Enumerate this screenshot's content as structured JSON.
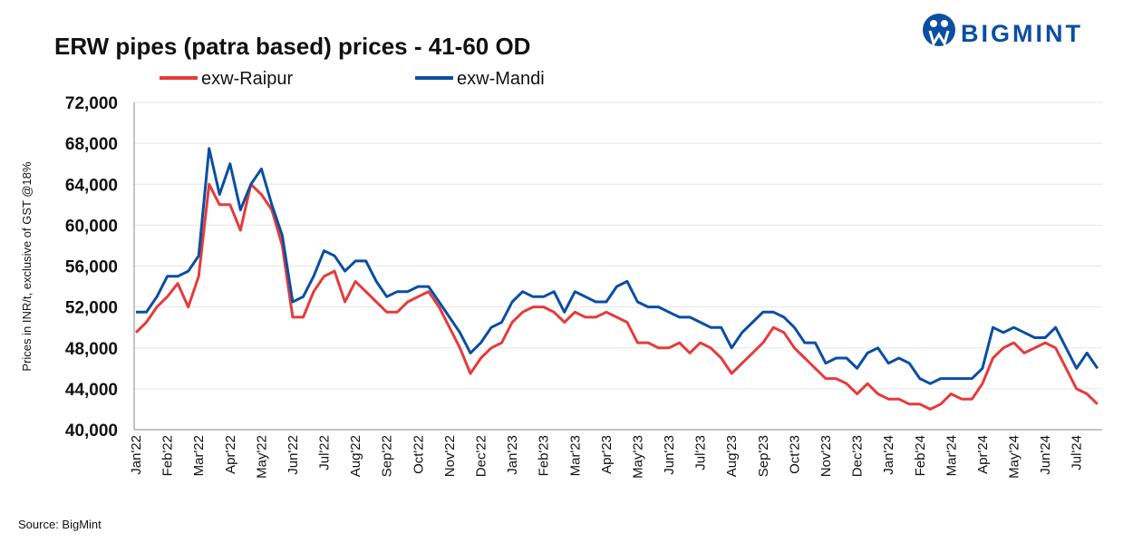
{
  "chart_data": {
    "type": "line",
    "title": "ERW pipes (patra based) prices - 41-60 OD",
    "logo": "BIGMINT",
    "y_label": "Prices in INR/t, exclusive of GST @18%",
    "source": "Source: BigMint",
    "categories": [
      "Jan'22",
      null,
      null,
      "Feb'22",
      null,
      null,
      "Mar'22",
      null,
      null,
      "Apr'22",
      null,
      null,
      "May'22",
      null,
      null,
      "Jun'22",
      null,
      null,
      "Jul'22",
      null,
      null,
      "Aug'22",
      null,
      null,
      "Sep'22",
      null,
      null,
      "Oct'22",
      null,
      null,
      "Nov'22",
      null,
      null,
      "Dec'22",
      null,
      null,
      "Jan'23",
      null,
      null,
      "Feb'23",
      null,
      null,
      "Mar'23",
      null,
      null,
      "Apr'23",
      null,
      null,
      "May'23",
      null,
      null,
      "Jun'23",
      null,
      null,
      "Jul'23",
      null,
      null,
      "Aug'23",
      null,
      null,
      "Sep'23",
      null,
      null,
      "Oct'23",
      null,
      null,
      "Nov'23",
      null,
      null,
      "Dec'23",
      null,
      null,
      "Jan'24",
      null,
      null,
      "Feb'24",
      null,
      null,
      "Mar'24",
      null,
      null,
      "Apr'24",
      null,
      null,
      "May'24",
      null,
      null,
      "Jun'24",
      null,
      null,
      "Jul'24",
      null,
      null
    ],
    "series": [
      {
        "name": "exw-Raipur",
        "color": "#e63b3b",
        "values": [
          49500,
          50500,
          52000,
          53000,
          54300,
          52000,
          55000,
          64000,
          62000,
          62000,
          59500,
          64000,
          63000,
          61500,
          58000,
          51000,
          51000,
          53500,
          55000,
          55500,
          52500,
          54500,
          53500,
          52500,
          51500,
          51500,
          52500,
          53000,
          53500,
          52000,
          50000,
          48000,
          45500,
          47000,
          48000,
          48500,
          50500,
          51500,
          52000,
          52000,
          51500,
          50500,
          51500,
          51000,
          51000,
          51500,
          51000,
          50500,
          48500,
          48500,
          48000,
          48000,
          48500,
          47500,
          48500,
          48000,
          47000,
          45500,
          46500,
          47500,
          48500,
          50000,
          49500,
          48000,
          47000,
          46000,
          45000,
          45000,
          44500,
          43500,
          44500,
          43500,
          43000,
          43000,
          42500,
          42500,
          42000,
          42500,
          43500,
          43000,
          43000,
          44500,
          47000,
          48000,
          48500,
          47500,
          48000,
          48500,
          48000,
          46000,
          44000,
          43500,
          42500
        ]
      },
      {
        "name": "exw-Mandi",
        "color": "#0b4ea2",
        "values": [
          51500,
          51500,
          53000,
          55000,
          55000,
          55500,
          57000,
          67500,
          63000,
          66000,
          61500,
          64000,
          65500,
          62000,
          59000,
          52500,
          53000,
          55000,
          57500,
          57000,
          55500,
          56500,
          56500,
          54500,
          53000,
          53500,
          53500,
          54000,
          54000,
          52500,
          51000,
          49500,
          47500,
          48500,
          50000,
          50500,
          52500,
          53500,
          53000,
          53000,
          53500,
          51500,
          53500,
          53000,
          52500,
          52500,
          54000,
          54500,
          52500,
          52000,
          52000,
          51500,
          51000,
          51000,
          50500,
          50000,
          50000,
          48000,
          49500,
          50500,
          51500,
          51500,
          51000,
          50000,
          48500,
          48500,
          46500,
          47000,
          47000,
          46000,
          47500,
          48000,
          46500,
          47000,
          46500,
          45000,
          44500,
          45000,
          45000,
          45000,
          45000,
          46000,
          50000,
          49500,
          50000,
          49500,
          49000,
          49000,
          50000,
          48000,
          46000,
          47500,
          46000
        ]
      }
    ],
    "ylim": [
      40000,
      72000
    ],
    "yticks": [
      {
        "value": 40000,
        "label": "40,000"
      },
      {
        "value": 44000,
        "label": "44,000"
      },
      {
        "value": 48000,
        "label": "48,000"
      },
      {
        "value": 52000,
        "label": "52,000"
      },
      {
        "value": 56000,
        "label": "56,000"
      },
      {
        "value": 60000,
        "label": "60,000"
      },
      {
        "value": 64000,
        "label": "64,000"
      },
      {
        "value": 68000,
        "label": "68,000"
      },
      {
        "value": 72000,
        "label": "72,000"
      }
    ],
    "grid": true
  }
}
